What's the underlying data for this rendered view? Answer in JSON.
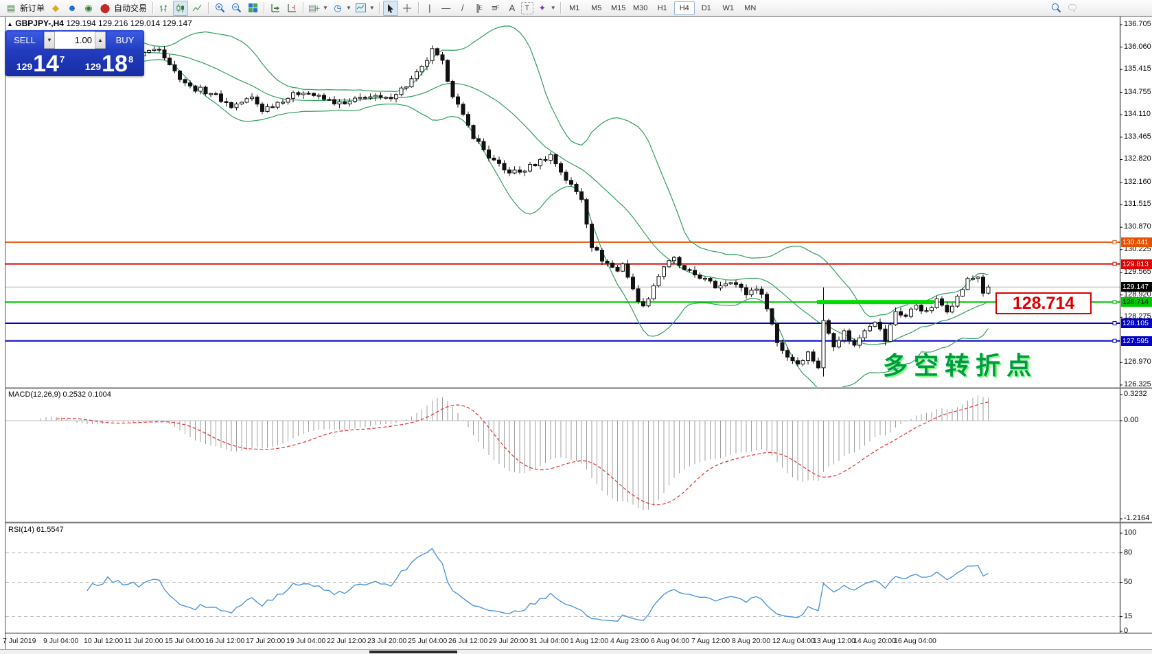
{
  "toolbar": {
    "new_order_label": "新订单",
    "auto_trading_label": "自动交易",
    "timeframes": [
      "M1",
      "M5",
      "M15",
      "M30",
      "H1",
      "H4",
      "D1",
      "W1",
      "MN"
    ],
    "active_timeframe": "H4"
  },
  "chart_header": {
    "symbol": "GBPJPY-,H4",
    "ohlc": "129.194 129.216 129.014 129.147"
  },
  "trade_panel": {
    "sell_label": "SELL",
    "buy_label": "BUY",
    "volume": "1.00",
    "sell_small": "129",
    "sell_big": "14",
    "sell_sup": "7",
    "buy_small": "129",
    "buy_big": "18",
    "buy_sup": "8"
  },
  "chart_data": {
    "type": "candlestick",
    "symbol": "GBPJPY-",
    "timeframe": "H4",
    "ohlc_current": {
      "open": 129.194,
      "high": 129.216,
      "low": 129.014,
      "close": 129.147
    },
    "price_axis_ticks": [
      136.705,
      136.06,
      135.415,
      134.755,
      134.11,
      133.465,
      132.82,
      132.16,
      131.515,
      130.87,
      130.225,
      129.565,
      128.92,
      128.275,
      126.97,
      126.325
    ],
    "time_axis_labels": [
      "7 Jul 2019",
      "9 Jul 04:00",
      "10 Jul 12:00",
      "11 Jul 20:00",
      "15 Jul 04:00",
      "16 Jul 12:00",
      "17 Jul 20:00",
      "19 Jul 04:00",
      "22 Jul 12:00",
      "23 Jul 20:00",
      "25 Jul 04:00",
      "26 Jul 12:00",
      "29 Jul 20:00",
      "31 Jul 04:00",
      "1 Aug 12:00",
      "4 Aug 23:00",
      "6 Aug 04:00",
      "7 Aug 12:00",
      "8 Aug 20:00",
      "12 Aug 04:00",
      "13 Aug 12:00",
      "14 Aug 20:00",
      "16 Aug 04:00"
    ],
    "hlines": [
      {
        "price": 130.441,
        "color": "#e65000",
        "label": "130.441",
        "text": "#ffffff"
      },
      {
        "price": 129.813,
        "color": "#dc0000",
        "label": "129.813",
        "text": "#ffffff"
      },
      {
        "price": 128.714,
        "color": "#00c800",
        "label": "128.714",
        "text": "#000000",
        "thick_zone": true
      },
      {
        "price": 128.105,
        "color": "#0000c8",
        "label": "128.105",
        "text": "#ffffff"
      },
      {
        "price": 127.595,
        "color": "#0000c8",
        "label": "127.595",
        "text": "#ffffff"
      }
    ],
    "current_price": 129.147,
    "current_price_label": "129.147",
    "callout_label": "128.714",
    "annotation_text": "多空转折点",
    "bollinger": {
      "period": 20,
      "deviation": 2,
      "color": "#2e9e5b"
    },
    "candle_count": 190,
    "price_anchors": [
      [
        0,
        135.9
      ],
      [
        6,
        136.15
      ],
      [
        12,
        135.7
      ],
      [
        18,
        136.0
      ],
      [
        24,
        135.85
      ],
      [
        28,
        136.05
      ],
      [
        31,
        135.35
      ],
      [
        34,
        134.9
      ],
      [
        38,
        134.75
      ],
      [
        42,
        134.35
      ],
      [
        46,
        134.6
      ],
      [
        48,
        134.25
      ],
      [
        52,
        134.55
      ],
      [
        56,
        134.8
      ],
      [
        60,
        134.55
      ],
      [
        64,
        134.4
      ],
      [
        68,
        134.65
      ],
      [
        72,
        134.55
      ],
      [
        76,
        134.95
      ],
      [
        79,
        135.45
      ],
      [
        81,
        135.95
      ],
      [
        83,
        135.6
      ],
      [
        85,
        134.7
      ],
      [
        87,
        134.05
      ],
      [
        89,
        133.5
      ],
      [
        92,
        132.9
      ],
      [
        95,
        132.5
      ],
      [
        98,
        132.45
      ],
      [
        101,
        132.7
      ],
      [
        104,
        132.95
      ],
      [
        107,
        132.25
      ],
      [
        110,
        131.7
      ],
      [
        112,
        130.35
      ],
      [
        114,
        129.95
      ],
      [
        117,
        129.6
      ],
      [
        118,
        129.85
      ],
      [
        120,
        129.05
      ],
      [
        122,
        128.55
      ],
      [
        124,
        129.2
      ],
      [
        126,
        129.75
      ],
      [
        128,
        129.95
      ],
      [
        130,
        129.6
      ],
      [
        133,
        129.45
      ],
      [
        136,
        129.15
      ],
      [
        139,
        129.35
      ],
      [
        142,
        128.95
      ],
      [
        144,
        129.15
      ],
      [
        146,
        128.6
      ],
      [
        148,
        127.55
      ],
      [
        150,
        127.15
      ],
      [
        152,
        126.95
      ],
      [
        154,
        127.25
      ],
      [
        156,
        126.85
      ],
      [
        157,
        128.15
      ],
      [
        159,
        127.5
      ],
      [
        161,
        127.85
      ],
      [
        163,
        127.45
      ],
      [
        165,
        127.95
      ],
      [
        167,
        128.2
      ],
      [
        169,
        127.6
      ],
      [
        171,
        128.45
      ],
      [
        173,
        128.3
      ],
      [
        175,
        128.65
      ],
      [
        177,
        128.4
      ],
      [
        179,
        128.75
      ],
      [
        181,
        128.5
      ],
      [
        183,
        128.85
      ],
      [
        185,
        129.35
      ],
      [
        187,
        129.45
      ],
      [
        188,
        129.0
      ],
      [
        189,
        129.147
      ]
    ],
    "macd": {
      "label": "MACD(12,26,9) 0.2532 0.1004",
      "value": 0.2532,
      "signal": 0.1004,
      "axis_ticks": [
        "0.3232",
        "0.00",
        "-1.2164"
      ],
      "axis_values": [
        0.3232,
        0,
        -1.2164
      ]
    },
    "rsi": {
      "label": "RSI(14) 61.5547",
      "value": 61.5547,
      "axis_ticks": [
        "100",
        "80",
        "50",
        "15",
        "0"
      ],
      "axis_values": [
        100,
        80,
        50,
        15,
        0
      ],
      "levels": [
        80,
        50,
        15
      ]
    }
  }
}
